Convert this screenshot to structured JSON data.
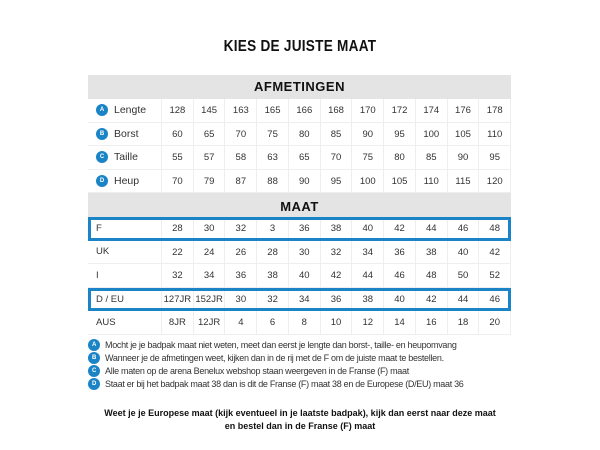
{
  "title": "KIES DE JUISTE MAAT",
  "accent": "#1a84c7",
  "measurements": {
    "header": "AFMETINGEN",
    "rows": [
      {
        "badge": "A",
        "label": "Lengte",
        "values": [
          "128",
          "145",
          "163",
          "165",
          "166",
          "168",
          "170",
          "172",
          "174",
          "176",
          "178"
        ]
      },
      {
        "badge": "B",
        "label": "Borst",
        "values": [
          "60",
          "65",
          "70",
          "75",
          "80",
          "85",
          "90",
          "95",
          "100",
          "105",
          "110"
        ]
      },
      {
        "badge": "C",
        "label": "Taille",
        "values": [
          "55",
          "57",
          "58",
          "63",
          "65",
          "70",
          "75",
          "80",
          "85",
          "90",
          "95"
        ]
      },
      {
        "badge": "D",
        "label": "Heup",
        "values": [
          "70",
          "79",
          "87",
          "88",
          "90",
          "95",
          "100",
          "105",
          "110",
          "115",
          "120"
        ]
      }
    ]
  },
  "sizes": {
    "header": "MAAT",
    "rows": [
      {
        "label": "F",
        "highlight": true,
        "values": [
          "28",
          "30",
          "32",
          "3",
          "36",
          "38",
          "40",
          "42",
          "44",
          "46",
          "48"
        ]
      },
      {
        "label": "UK",
        "highlight": false,
        "values": [
          "22",
          "24",
          "26",
          "28",
          "30",
          "32",
          "34",
          "36",
          "38",
          "40",
          "42"
        ]
      },
      {
        "label": "I",
        "highlight": false,
        "values": [
          "32",
          "34",
          "36",
          "38",
          "40",
          "42",
          "44",
          "46",
          "48",
          "50",
          "52"
        ]
      },
      {
        "label": "D / EU",
        "highlight": true,
        "values": [
          "127JR",
          "152JR",
          "30",
          "32",
          "34",
          "36",
          "38",
          "40",
          "42",
          "44",
          "46"
        ]
      },
      {
        "label": "AUS",
        "highlight": false,
        "values": [
          "8JR",
          "12JR",
          "4",
          "6",
          "8",
          "10",
          "12",
          "14",
          "16",
          "18",
          "20"
        ]
      }
    ]
  },
  "notes": [
    {
      "badge": "A",
      "text": "Mocht je je badpak maat niet weten, meet dan eerst je lengte dan borst-, taille- en heupomvang"
    },
    {
      "badge": "B",
      "text": "Wanneer je de afmetingen weet, kijken dan in de rij met de F om de juiste maat te bestellen."
    },
    {
      "badge": "C",
      "text": "Alle maten op de arena Benelux webshop staan weergeven in de Franse (F) maat"
    },
    {
      "badge": "D",
      "text": "Staat er bij het badpak maat 38 dan is dit de Franse (F) maat 38 en de Europese (D/EU) maat 36"
    }
  ],
  "bottom": [
    "Weet je je Europese  maat (kijk eventueel in je laatste badpak), kijk dan eerst naar deze maat",
    "en bestel dan in de Franse  (F) maat"
  ]
}
